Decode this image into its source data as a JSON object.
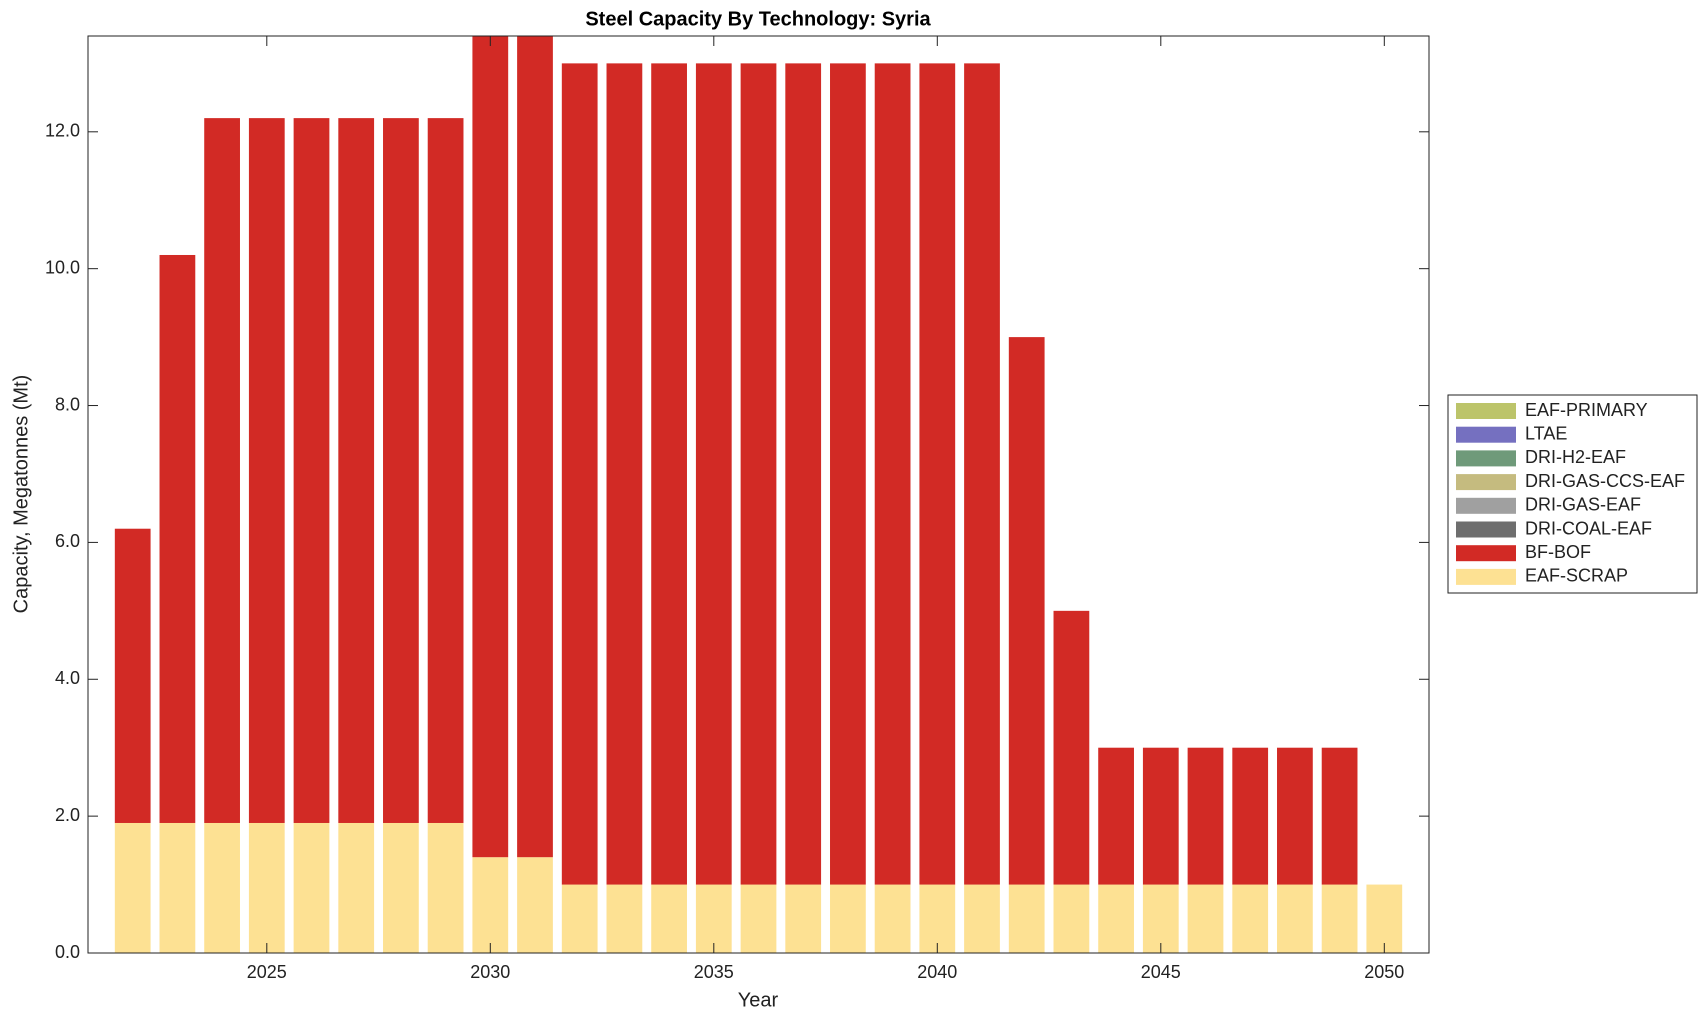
{
  "chart_data": {
    "type": "stacked-bar",
    "title": "Steel Capacity By Technology: Syria",
    "x_label": "Year",
    "y_label": "Capacity, Megatonnes (Mt)",
    "x": [
      2022,
      2023,
      2024,
      2025,
      2026,
      2027,
      2028,
      2029,
      2030,
      2031,
      2032,
      2033,
      2034,
      2035,
      2036,
      2037,
      2038,
      2039,
      2040,
      2041,
      2042,
      2043,
      2044,
      2045,
      2046,
      2047,
      2048,
      2049,
      2050
    ],
    "series": [
      {
        "name": "EAF-PRIMARY",
        "color": "#bcc46a",
        "values": [
          0,
          0,
          0,
          0,
          0,
          0,
          0,
          0,
          0,
          0,
          0,
          0,
          0,
          0,
          0,
          0,
          0,
          0,
          0,
          0,
          0,
          0,
          0,
          0,
          0,
          0,
          0,
          0,
          0
        ]
      },
      {
        "name": "LTAE",
        "color": "#7570c0",
        "values": [
          0,
          0,
          0,
          0,
          0,
          0,
          0,
          0,
          0,
          0,
          0,
          0,
          0,
          0,
          0,
          0,
          0,
          0,
          0,
          0,
          0,
          0,
          0,
          0,
          0,
          0,
          0,
          0,
          0
        ]
      },
      {
        "name": "DRI-H2-EAF",
        "color": "#6f9a7a",
        "values": [
          0,
          0,
          0,
          0,
          0,
          0,
          0,
          0,
          0,
          0,
          0,
          0,
          0,
          0,
          0,
          0,
          0,
          0,
          0,
          0,
          0,
          0,
          0,
          0,
          0,
          0,
          0,
          0,
          0
        ]
      },
      {
        "name": "DRI-GAS-CCS-EAF",
        "color": "#c5bb7f",
        "values": [
          0,
          0,
          0,
          0,
          0,
          0,
          0,
          0,
          0,
          0,
          0,
          0,
          0,
          0,
          0,
          0,
          0,
          0,
          0,
          0,
          0,
          0,
          0,
          0,
          0,
          0,
          0,
          0,
          0
        ]
      },
      {
        "name": "DRI-GAS-EAF",
        "color": "#a0a0a0",
        "values": [
          0,
          0,
          0,
          0,
          0,
          0,
          0,
          0,
          0,
          0,
          0,
          0,
          0,
          0,
          0,
          0,
          0,
          0,
          0,
          0,
          0,
          0,
          0,
          0,
          0,
          0,
          0,
          0,
          0
        ]
      },
      {
        "name": "DRI-COAL-EAF",
        "color": "#6e6e6e",
        "values": [
          0,
          0,
          0,
          0,
          0,
          0,
          0,
          0,
          0,
          0,
          0,
          0,
          0,
          0,
          0,
          0,
          0,
          0,
          0,
          0,
          0,
          0,
          0,
          0,
          0,
          0,
          0,
          0,
          0
        ]
      },
      {
        "name": "BF-BOF",
        "color": "#d22a25",
        "values": [
          4.3,
          8.3,
          10.3,
          10.3,
          10.3,
          10.3,
          10.3,
          10.3,
          12,
          12,
          12,
          12,
          12,
          12,
          12,
          12,
          12,
          12,
          12,
          12,
          8,
          4,
          2,
          2,
          2,
          2,
          2,
          2,
          0
        ]
      },
      {
        "name": "EAF-SCRAP",
        "color": "#fde193",
        "values": [
          1.9,
          1.9,
          1.9,
          1.9,
          1.9,
          1.9,
          1.9,
          1.9,
          1.4,
          1.4,
          1,
          1,
          1,
          1,
          1,
          1,
          1,
          1,
          1,
          1,
          1,
          1,
          1,
          1,
          1,
          1,
          1,
          1,
          1
        ]
      }
    ],
    "xlim": [
      2021,
      2051
    ],
    "xticks": [
      2025,
      2030,
      2035,
      2040,
      2045,
      2050
    ],
    "ylim": [
      0,
      13.4
    ],
    "yticks": [
      {
        "value": 0,
        "label": "0.0"
      },
      {
        "value": 2,
        "label": "2.0"
      },
      {
        "value": 4,
        "label": "4.0"
      },
      {
        "value": 6,
        "label": "6.0"
      },
      {
        "value": 8,
        "label": "8.0"
      },
      {
        "value": 10,
        "label": "10.0"
      },
      {
        "value": 12,
        "label": "12.0"
      }
    ],
    "legend": "outside-right"
  }
}
